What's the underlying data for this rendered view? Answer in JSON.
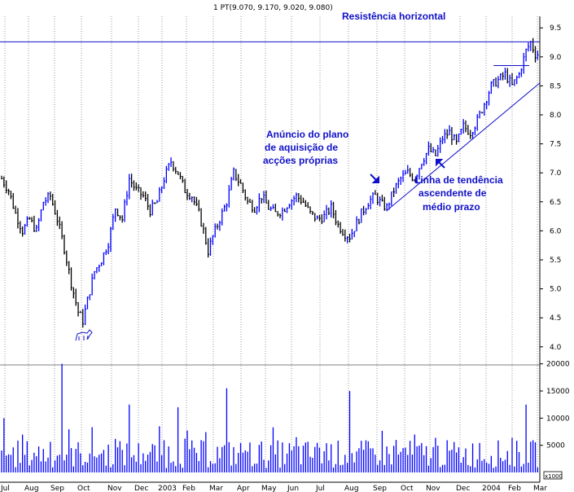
{
  "chart_data": {
    "type": "bar",
    "header": "1 PT(9.070, 9.170, 9.020, 9.080)",
    "ohlc_last": {
      "open": 9.07,
      "high": 9.17,
      "low": 9.02,
      "close": 9.08
    },
    "price_axis": {
      "ylim": [
        3.8,
        9.7
      ],
      "ticks": [
        "9.5",
        "9.0",
        "8.5",
        "8.0",
        "7.5",
        "7.0",
        "6.5",
        "6.0",
        "5.5",
        "5.0",
        "4.5",
        "4.0"
      ]
    },
    "volume_axis": {
      "ylim": [
        0,
        21000
      ],
      "ticks": [
        "20000",
        "15000",
        "10000",
        "5000"
      ],
      "unit_label": "x1000"
    },
    "x_axis": {
      "ticks": [
        "Jul",
        "Aug",
        "Sep",
        "Oct",
        "Nov",
        "Dec",
        "2003",
        "Feb",
        "Mar",
        "Apr",
        "May",
        "Jun",
        "Jul",
        "Aug",
        "Sep",
        "Oct",
        "Nov",
        "Dec",
        "2004",
        "Feb",
        "Mar"
      ]
    },
    "price_series": {
      "name": "PT",
      "color": "#0000ff",
      "down_color": "#000000",
      "points": [
        [
          0,
          6.9
        ],
        [
          3,
          6.7
        ],
        [
          6,
          6.3
        ],
        [
          9,
          6.0
        ],
        [
          12,
          6.2
        ],
        [
          15,
          6.0
        ],
        [
          18,
          6.5
        ],
        [
          21,
          6.6
        ],
        [
          24,
          6.2
        ],
        [
          27,
          5.7
        ],
        [
          30,
          5.1
        ],
        [
          33,
          4.6
        ],
        [
          35,
          4.45
        ],
        [
          37,
          4.8
        ],
        [
          40,
          5.3
        ],
        [
          43,
          5.5
        ],
        [
          46,
          5.8
        ],
        [
          49,
          6.4
        ],
        [
          52,
          6.2
        ],
        [
          55,
          6.9
        ],
        [
          58,
          6.7
        ],
        [
          61,
          6.6
        ],
        [
          64,
          6.35
        ],
        [
          67,
          6.5
        ],
        [
          70,
          6.9
        ],
        [
          73,
          7.2
        ],
        [
          76,
          7.0
        ],
        [
          79,
          6.7
        ],
        [
          82,
          6.6
        ],
        [
          85,
          6.3
        ],
        [
          87,
          6.0
        ],
        [
          89,
          5.65
        ],
        [
          91,
          5.9
        ],
        [
          94,
          6.2
        ],
        [
          97,
          6.5
        ],
        [
          100,
          7.0
        ],
        [
          103,
          6.8
        ],
        [
          106,
          6.5
        ],
        [
          109,
          6.4
        ],
        [
          112,
          6.6
        ],
        [
          115,
          6.4
        ],
        [
          118,
          6.3
        ],
        [
          121,
          6.35
        ],
        [
          124,
          6.5
        ],
        [
          127,
          6.6
        ],
        [
          130,
          6.5
        ],
        [
          133,
          6.3
        ],
        [
          136,
          6.2
        ],
        [
          139,
          6.25
        ],
        [
          142,
          6.4
        ],
        [
          145,
          6.1
        ],
        [
          148,
          5.95
        ],
        [
          150,
          5.9
        ],
        [
          152,
          6.05
        ],
        [
          155,
          6.3
        ],
        [
          158,
          6.5
        ],
        [
          161,
          6.6
        ],
        [
          164,
          6.45
        ],
        [
          166,
          6.4
        ],
        [
          169,
          6.7
        ],
        [
          172,
          6.9
        ],
        [
          175,
          7.0
        ],
        [
          178,
          6.9
        ],
        [
          181,
          7.2
        ],
        [
          184,
          7.4
        ],
        [
          187,
          7.3
        ],
        [
          190,
          7.6
        ],
        [
          193,
          7.7
        ],
        [
          196,
          7.5
        ],
        [
          199,
          7.8
        ],
        [
          202,
          7.7
        ],
        [
          205,
          7.9
        ],
        [
          208,
          8.2
        ],
        [
          211,
          8.5
        ],
        [
          214,
          8.6
        ],
        [
          217,
          8.7
        ],
        [
          220,
          8.5
        ],
        [
          223,
          8.7
        ],
        [
          226,
          9.1
        ],
        [
          228,
          9.25
        ],
        [
          230,
          9.05
        ]
      ]
    },
    "volume_series": {
      "name": "Volume",
      "color": "#0000ff",
      "spikes": [
        [
          1,
          10000
        ],
        [
          26,
          20000
        ],
        [
          55,
          12500
        ],
        [
          76,
          12000
        ],
        [
          97,
          15500
        ],
        [
          150,
          15000
        ],
        [
          226,
          12500
        ]
      ]
    },
    "annotations": {
      "resistance": {
        "label": "Resistência horizontal",
        "level": 9.26
      },
      "plan": {
        "lines": [
          "Anúncio do plano",
          "de aquisição de",
          "acções próprias"
        ]
      },
      "trend": {
        "lines": [
          "Linha de tendência",
          "ascendente de",
          "médio prazo"
        ],
        "from": [
          166,
          6.35
        ],
        "to": [
          240,
          8.55
        ]
      },
      "recent_support": {
        "level": 8.85
      }
    }
  }
}
